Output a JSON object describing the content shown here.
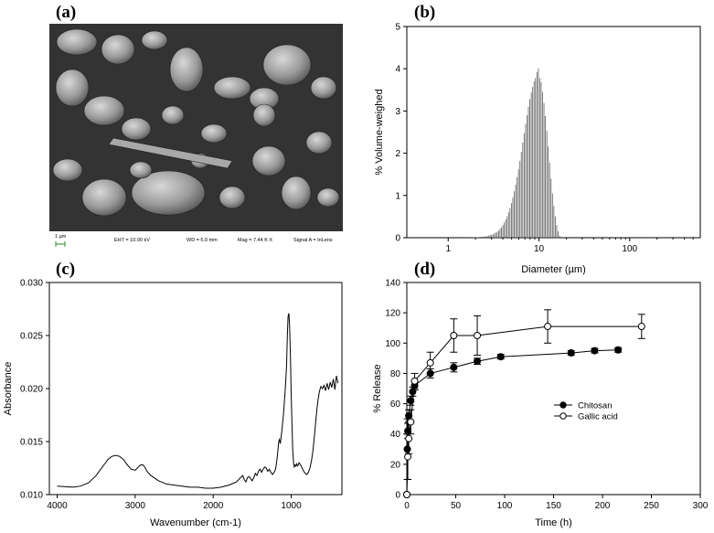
{
  "labels": {
    "a": "(a)",
    "b": "(b)",
    "c": "(c)",
    "d": "(d)"
  },
  "sem": {
    "scale": "1 µm",
    "eht": "EHT = 10.00 kV",
    "wd": "WD = 5.0 mm",
    "mag": "Mag = 7.44 K X",
    "signal": "Signal A = InLens"
  },
  "chart_data": [
    {
      "id": "b",
      "type": "bar",
      "xlabel": "Diameter (µm)",
      "ylabel": "% Volume-weighed",
      "xscale": "log",
      "xlim": [
        0.35,
        600
      ],
      "ylim": [
        0,
        5
      ],
      "xticks": [
        {
          "v": 1,
          "label": "1"
        },
        {
          "v": 10,
          "label": "10"
        },
        {
          "v": 100,
          "label": "100"
        }
      ],
      "yticks": [
        0,
        1,
        2,
        3,
        4,
        5
      ],
      "bin_start": 1.8,
      "bin_ratio": 1.0366,
      "values": [
        0.01,
        0.01,
        0.01,
        0.01,
        0.01,
        0.01,
        0.02,
        0.02,
        0.02,
        0.03,
        0.03,
        0.04,
        0.05,
        0.06,
        0.07,
        0.08,
        0.1,
        0.12,
        0.14,
        0.17,
        0.21,
        0.25,
        0.3,
        0.36,
        0.43,
        0.51,
        0.6,
        0.7,
        0.82,
        0.95,
        1.1,
        1.26,
        1.43,
        1.62,
        1.82,
        2.03,
        2.25,
        2.47,
        2.69,
        2.9,
        3.1,
        3.28,
        3.44,
        3.57,
        3.7,
        3.78,
        3.92,
        4.01,
        3.78,
        3.68,
        3.45,
        3.19,
        2.88,
        2.53,
        2.16,
        1.78,
        1.4,
        1.05,
        0.75,
        0.5,
        0.3,
        0.15,
        0.05
      ]
    },
    {
      "id": "c",
      "type": "line",
      "xlabel": "Wavenumber (cm-1)",
      "ylabel": "Absorbance",
      "xlim": [
        4100,
        350
      ],
      "ylim": [
        0.01,
        0.03
      ],
      "xticks": [
        4000,
        3000,
        2000,
        1000
      ],
      "yticks": [
        {
          "v": 0.01,
          "label": "0.010"
        },
        {
          "v": 0.015,
          "label": "0.015"
        },
        {
          "v": 0.02,
          "label": "0.020"
        },
        {
          "v": 0.025,
          "label": "0.025"
        },
        {
          "v": 0.03,
          "label": "0.030"
        }
      ],
      "x": [
        4000,
        3800,
        3700,
        3600,
        3500,
        3400,
        3350,
        3300,
        3250,
        3200,
        3150,
        3100,
        3050,
        3000,
        2960,
        2930,
        2900,
        2870,
        2850,
        2800,
        2700,
        2600,
        2500,
        2400,
        2300,
        2200,
        2100,
        2000,
        1900,
        1800,
        1700,
        1650,
        1620,
        1600,
        1580,
        1560,
        1540,
        1500,
        1480,
        1460,
        1440,
        1420,
        1400,
        1380,
        1360,
        1340,
        1320,
        1300,
        1280,
        1260,
        1240,
        1220,
        1200,
        1180,
        1160,
        1150,
        1140,
        1120,
        1100,
        1080,
        1060,
        1050,
        1040,
        1030,
        1020,
        1010,
        1000,
        990,
        980,
        970,
        960,
        950,
        940,
        930,
        920,
        910,
        900,
        880,
        860,
        840,
        820,
        800,
        780,
        760,
        740,
        720,
        700,
        680,
        660,
        640,
        620,
        600,
        580,
        560,
        540,
        520,
        500,
        480,
        460,
        440,
        420,
        400
      ],
      "y": [
        0.0108,
        0.0107,
        0.0108,
        0.0111,
        0.0118,
        0.0128,
        0.0133,
        0.0136,
        0.0137,
        0.0136,
        0.0133,
        0.0128,
        0.0124,
        0.0123,
        0.0126,
        0.0128,
        0.0128,
        0.0125,
        0.0122,
        0.0118,
        0.0113,
        0.011,
        0.0109,
        0.0108,
        0.0107,
        0.0107,
        0.0106,
        0.0106,
        0.0107,
        0.0109,
        0.0112,
        0.0116,
        0.0118,
        0.0114,
        0.0112,
        0.0116,
        0.0117,
        0.0113,
        0.0116,
        0.012,
        0.0118,
        0.0122,
        0.0124,
        0.0121,
        0.0124,
        0.0126,
        0.0125,
        0.0122,
        0.0124,
        0.0121,
        0.0119,
        0.0121,
        0.0124,
        0.0135,
        0.015,
        0.0152,
        0.0148,
        0.016,
        0.0175,
        0.0195,
        0.022,
        0.025,
        0.0268,
        0.0271,
        0.0258,
        0.023,
        0.0195,
        0.0165,
        0.0142,
        0.013,
        0.0126,
        0.0128,
        0.0127,
        0.0129,
        0.0127,
        0.0128,
        0.013,
        0.0128,
        0.0125,
        0.0122,
        0.012,
        0.0119,
        0.0121,
        0.0125,
        0.0132,
        0.0142,
        0.0157,
        0.0173,
        0.0187,
        0.0197,
        0.0202,
        0.02,
        0.0203,
        0.0198,
        0.0205,
        0.0199,
        0.0206,
        0.0201,
        0.0209,
        0.0199,
        0.0212,
        0.0205
      ]
    },
    {
      "id": "d",
      "type": "scatter",
      "xlabel": "Time (h)",
      "ylabel": "% Release",
      "xlim": [
        0,
        300
      ],
      "ylim": [
        0,
        140
      ],
      "xticks": [
        0,
        50,
        100,
        150,
        200,
        250,
        300
      ],
      "yticks": [
        0,
        20,
        40,
        60,
        80,
        100,
        120,
        140
      ],
      "legend": "center-right",
      "series": [
        {
          "name": "Chitosan",
          "marker": "filled",
          "x": [
            0,
            0.5,
            1,
            2,
            4,
            6,
            8,
            24,
            48,
            72,
            96,
            168,
            192,
            216
          ],
          "y": [
            0,
            30,
            42,
            52,
            62,
            68,
            72,
            80,
            84,
            88,
            91,
            93.5,
            95,
            95.5
          ],
          "err": [
            0,
            20,
            5,
            4,
            3,
            3,
            3,
            3,
            3,
            2,
            1.5,
            1.5,
            1.5,
            1.5
          ]
        },
        {
          "name": "Gallic acid",
          "marker": "open",
          "x": [
            0,
            1,
            2,
            4,
            8,
            24,
            48,
            72,
            144,
            240
          ],
          "y": [
            0,
            25,
            37,
            48,
            75,
            87,
            105,
            105,
            111,
            111
          ],
          "err": [
            0,
            15,
            10,
            8,
            5,
            7,
            11,
            13,
            11,
            8
          ]
        }
      ]
    }
  ]
}
